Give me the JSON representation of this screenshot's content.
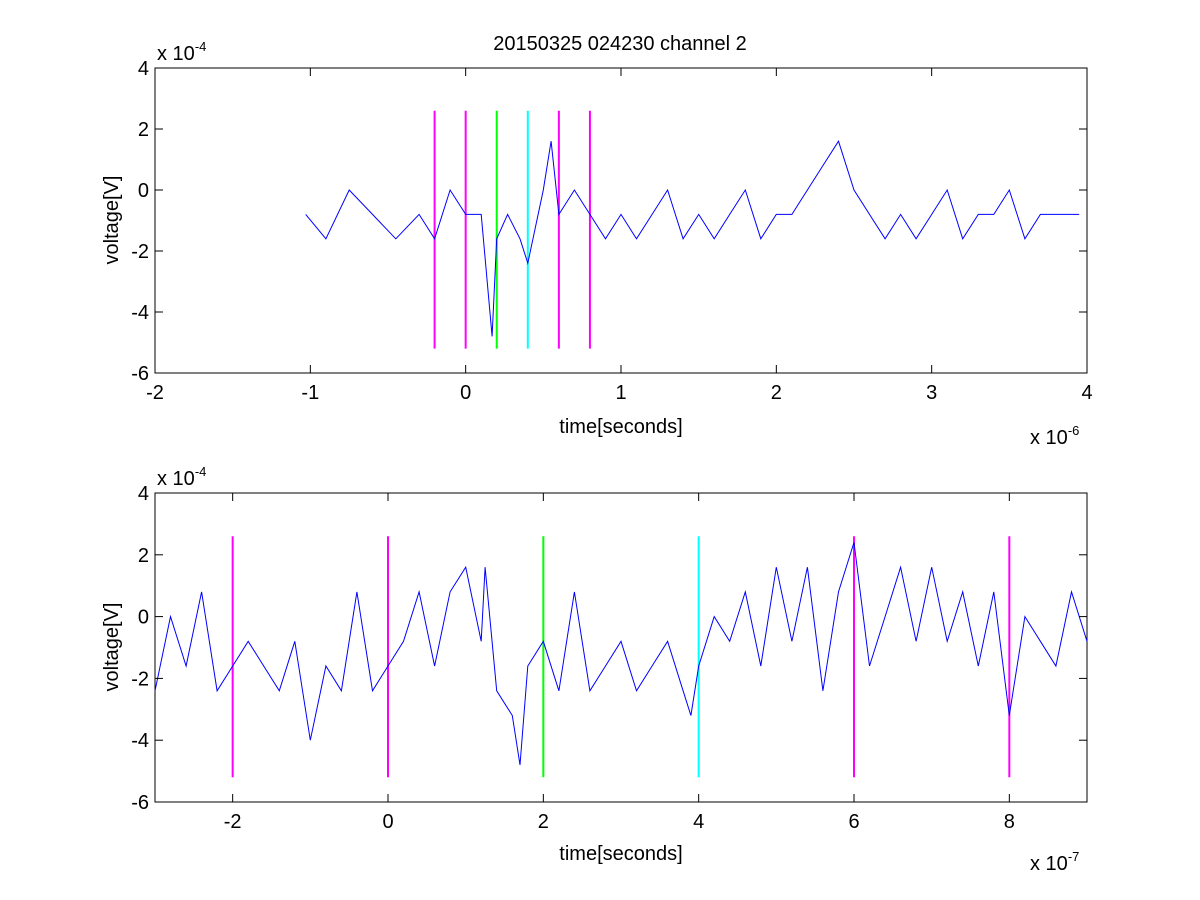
{
  "figure": {
    "title": "20150325 024230 channel 2"
  },
  "chart_data": [
    {
      "type": "line",
      "title": "20150325 024230 channel 2",
      "xlabel": "time[seconds]",
      "ylabel": "voltage[V]",
      "x_exponent_label": "x 10",
      "x_exponent": "-6",
      "y_exponent_label": "x 10",
      "y_exponent": "-4",
      "xlim": [
        -2,
        4
      ],
      "ylim": [
        -6,
        4
      ],
      "xticks": [
        "-2",
        "-1",
        "0",
        "1",
        "2",
        "3",
        "4"
      ],
      "yticks": [
        "4",
        "2",
        "0",
        "-2",
        "-4",
        "-6"
      ],
      "grid": false,
      "line_color": "#0000ff",
      "series_x_range": [
        -1.03,
        3.95
      ],
      "series": [
        {
          "x": [
            -1.03,
            -0.9,
            -0.75,
            -0.6,
            -0.45,
            -0.3,
            -0.2,
            -0.1,
            0.0,
            0.1,
            0.17,
            0.2,
            0.27,
            0.35,
            0.4,
            0.5,
            0.55,
            0.6,
            0.7,
            0.8,
            0.9,
            1.0,
            1.1,
            1.2,
            1.3,
            1.4,
            1.5,
            1.6,
            1.7,
            1.8,
            1.9,
            2.0,
            2.1,
            2.2,
            2.3,
            2.4,
            2.5,
            2.6,
            2.7,
            2.8,
            2.9,
            3.0,
            3.1,
            3.2,
            3.3,
            3.4,
            3.5,
            3.6,
            3.7,
            3.8,
            3.95
          ],
          "y": [
            -0.8,
            -1.6,
            0.0,
            -0.8,
            -1.6,
            -0.8,
            -1.6,
            0.0,
            -0.8,
            -0.8,
            -4.8,
            -1.6,
            -0.8,
            -1.6,
            -2.4,
            0.0,
            1.6,
            -0.8,
            0.0,
            -0.8,
            -1.6,
            -0.8,
            -1.6,
            -0.8,
            0.0,
            -1.6,
            -0.8,
            -1.6,
            -0.8,
            0.0,
            -1.6,
            -0.8,
            -0.8,
            0.0,
            0.8,
            1.6,
            0.0,
            -0.8,
            -1.6,
            -0.8,
            -1.6,
            -0.8,
            0.0,
            -1.6,
            -0.8,
            -0.8,
            0.0,
            -1.6,
            -0.8,
            -0.8,
            -0.8
          ]
        }
      ],
      "vlines": [
        {
          "x": -0.2,
          "color": "#ff00ff"
        },
        {
          "x": 0.0,
          "color": "#ff00ff"
        },
        {
          "x": 0.2,
          "color": "#00ff00"
        },
        {
          "x": 0.4,
          "color": "#00ffff"
        },
        {
          "x": 0.6,
          "color": "#ff00ff"
        },
        {
          "x": 0.8,
          "color": "#ff00ff"
        }
      ],
      "vline_y_range": [
        -5.2,
        2.6
      ]
    },
    {
      "type": "line",
      "xlabel": "time[seconds]",
      "ylabel": "voltage[V]",
      "x_exponent_label": "x 10",
      "x_exponent": "-7",
      "y_exponent_label": "x 10",
      "y_exponent": "-4",
      "xlim": [
        -3,
        9
      ],
      "ylim": [
        -6,
        4
      ],
      "xticks": [
        "-2",
        "0",
        "2",
        "4",
        "6",
        "8"
      ],
      "yticks": [
        "4",
        "2",
        "0",
        "-2",
        "-4",
        "-6"
      ],
      "grid": false,
      "line_color": "#0000ff",
      "series": [
        {
          "x": [
            -3.0,
            -2.8,
            -2.6,
            -2.4,
            -2.2,
            -2.0,
            -1.8,
            -1.6,
            -1.4,
            -1.2,
            -1.0,
            -0.8,
            -0.6,
            -0.4,
            -0.2,
            0.0,
            0.2,
            0.4,
            0.6,
            0.8,
            1.0,
            1.2,
            1.25,
            1.4,
            1.6,
            1.7,
            1.8,
            2.0,
            2.2,
            2.4,
            2.6,
            2.8,
            3.0,
            3.2,
            3.4,
            3.6,
            3.8,
            3.9,
            4.0,
            4.2,
            4.4,
            4.6,
            4.8,
            5.0,
            5.2,
            5.4,
            5.6,
            5.8,
            6.0,
            6.2,
            6.4,
            6.6,
            6.8,
            7.0,
            7.2,
            7.4,
            7.6,
            7.8,
            8.0,
            8.2,
            8.4,
            8.6,
            8.8,
            9.0
          ],
          "y": [
            -2.4,
            0.0,
            -1.6,
            0.8,
            -2.4,
            -1.6,
            -0.8,
            -1.6,
            -2.4,
            -0.8,
            -4.0,
            -1.6,
            -2.4,
            0.8,
            -2.4,
            -1.6,
            -0.8,
            0.8,
            -1.6,
            0.8,
            1.6,
            -0.8,
            1.6,
            -2.4,
            -3.2,
            -4.8,
            -1.6,
            -0.8,
            -2.4,
            0.8,
            -2.4,
            -1.6,
            -0.8,
            -2.4,
            -1.6,
            -0.8,
            -2.4,
            -3.2,
            -1.6,
            0.0,
            -0.8,
            0.8,
            -1.6,
            1.6,
            -0.8,
            1.6,
            -2.4,
            0.8,
            2.4,
            -1.6,
            0.0,
            1.6,
            -0.8,
            1.6,
            -0.8,
            0.8,
            -1.6,
            0.8,
            -3.2,
            0.0,
            -0.8,
            -1.6,
            0.8,
            -0.8
          ]
        }
      ],
      "vlines": [
        {
          "x": -2,
          "color": "#ff00ff"
        },
        {
          "x": 0,
          "color": "#ff00ff"
        },
        {
          "x": 2,
          "color": "#00ff00"
        },
        {
          "x": 4,
          "color": "#00ffff"
        },
        {
          "x": 6,
          "color": "#ff00ff"
        },
        {
          "x": 8,
          "color": "#ff00ff"
        }
      ],
      "vline_y_range": [
        -5.2,
        2.6
      ]
    }
  ]
}
